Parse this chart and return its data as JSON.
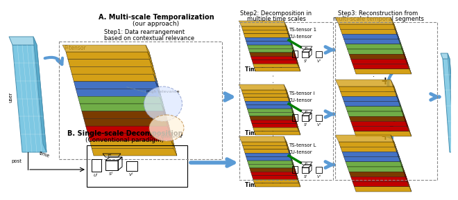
{
  "title_A": "A. Multi-scale Temporalization",
  "subtitle_A": "(our approach)",
  "title_B": "B. Single-scale Decomposition",
  "subtitle_B": "(Conventional paradigm)",
  "step1_text1": "Step1: Data rearrangement",
  "step1_text2": "based on contextual relevance",
  "step2_line1": "Step2: Decomposition in",
  "step2_line2": "multiple time scales",
  "step3_line1": "Step3: Reconstruction from",
  "step3_line2": "multi-scale temporal segments",
  "p_tensor_label": "P-tensor",
  "high_relevance": "High relevance",
  "low_relevance": "Low relevance",
  "ts_tensor_labels": [
    "TS-tensor 1",
    "TS-tensor i",
    "TS-tensor L"
  ],
  "cu_tensor_label": "CU-tensor",
  "time_scale_labels": [
    "Time Scale 1",
    "Time Scale i",
    "Time Scale L"
  ],
  "user_label": "user",
  "post_label": "post",
  "time_label": "time",
  "tensor_stripe_colors": [
    "#d4a017",
    "#d4a017",
    "#d4a017",
    "#4472c4",
    "#70ad47",
    "#70ad47",
    "#c00000",
    "#d4a017"
  ],
  "box_bg": "#add8e6",
  "arrow_color": "#5b9bd5",
  "bg_color": "#ffffff",
  "text_color": "#000000",
  "dot_color": "#555555",
  "recon_stripe_colors": [
    "#d4a017",
    "#d4a017",
    "#4472c4",
    "#70ad47",
    "#c00000",
    "#d4a017",
    "#4472c4",
    "#d4a017"
  ]
}
